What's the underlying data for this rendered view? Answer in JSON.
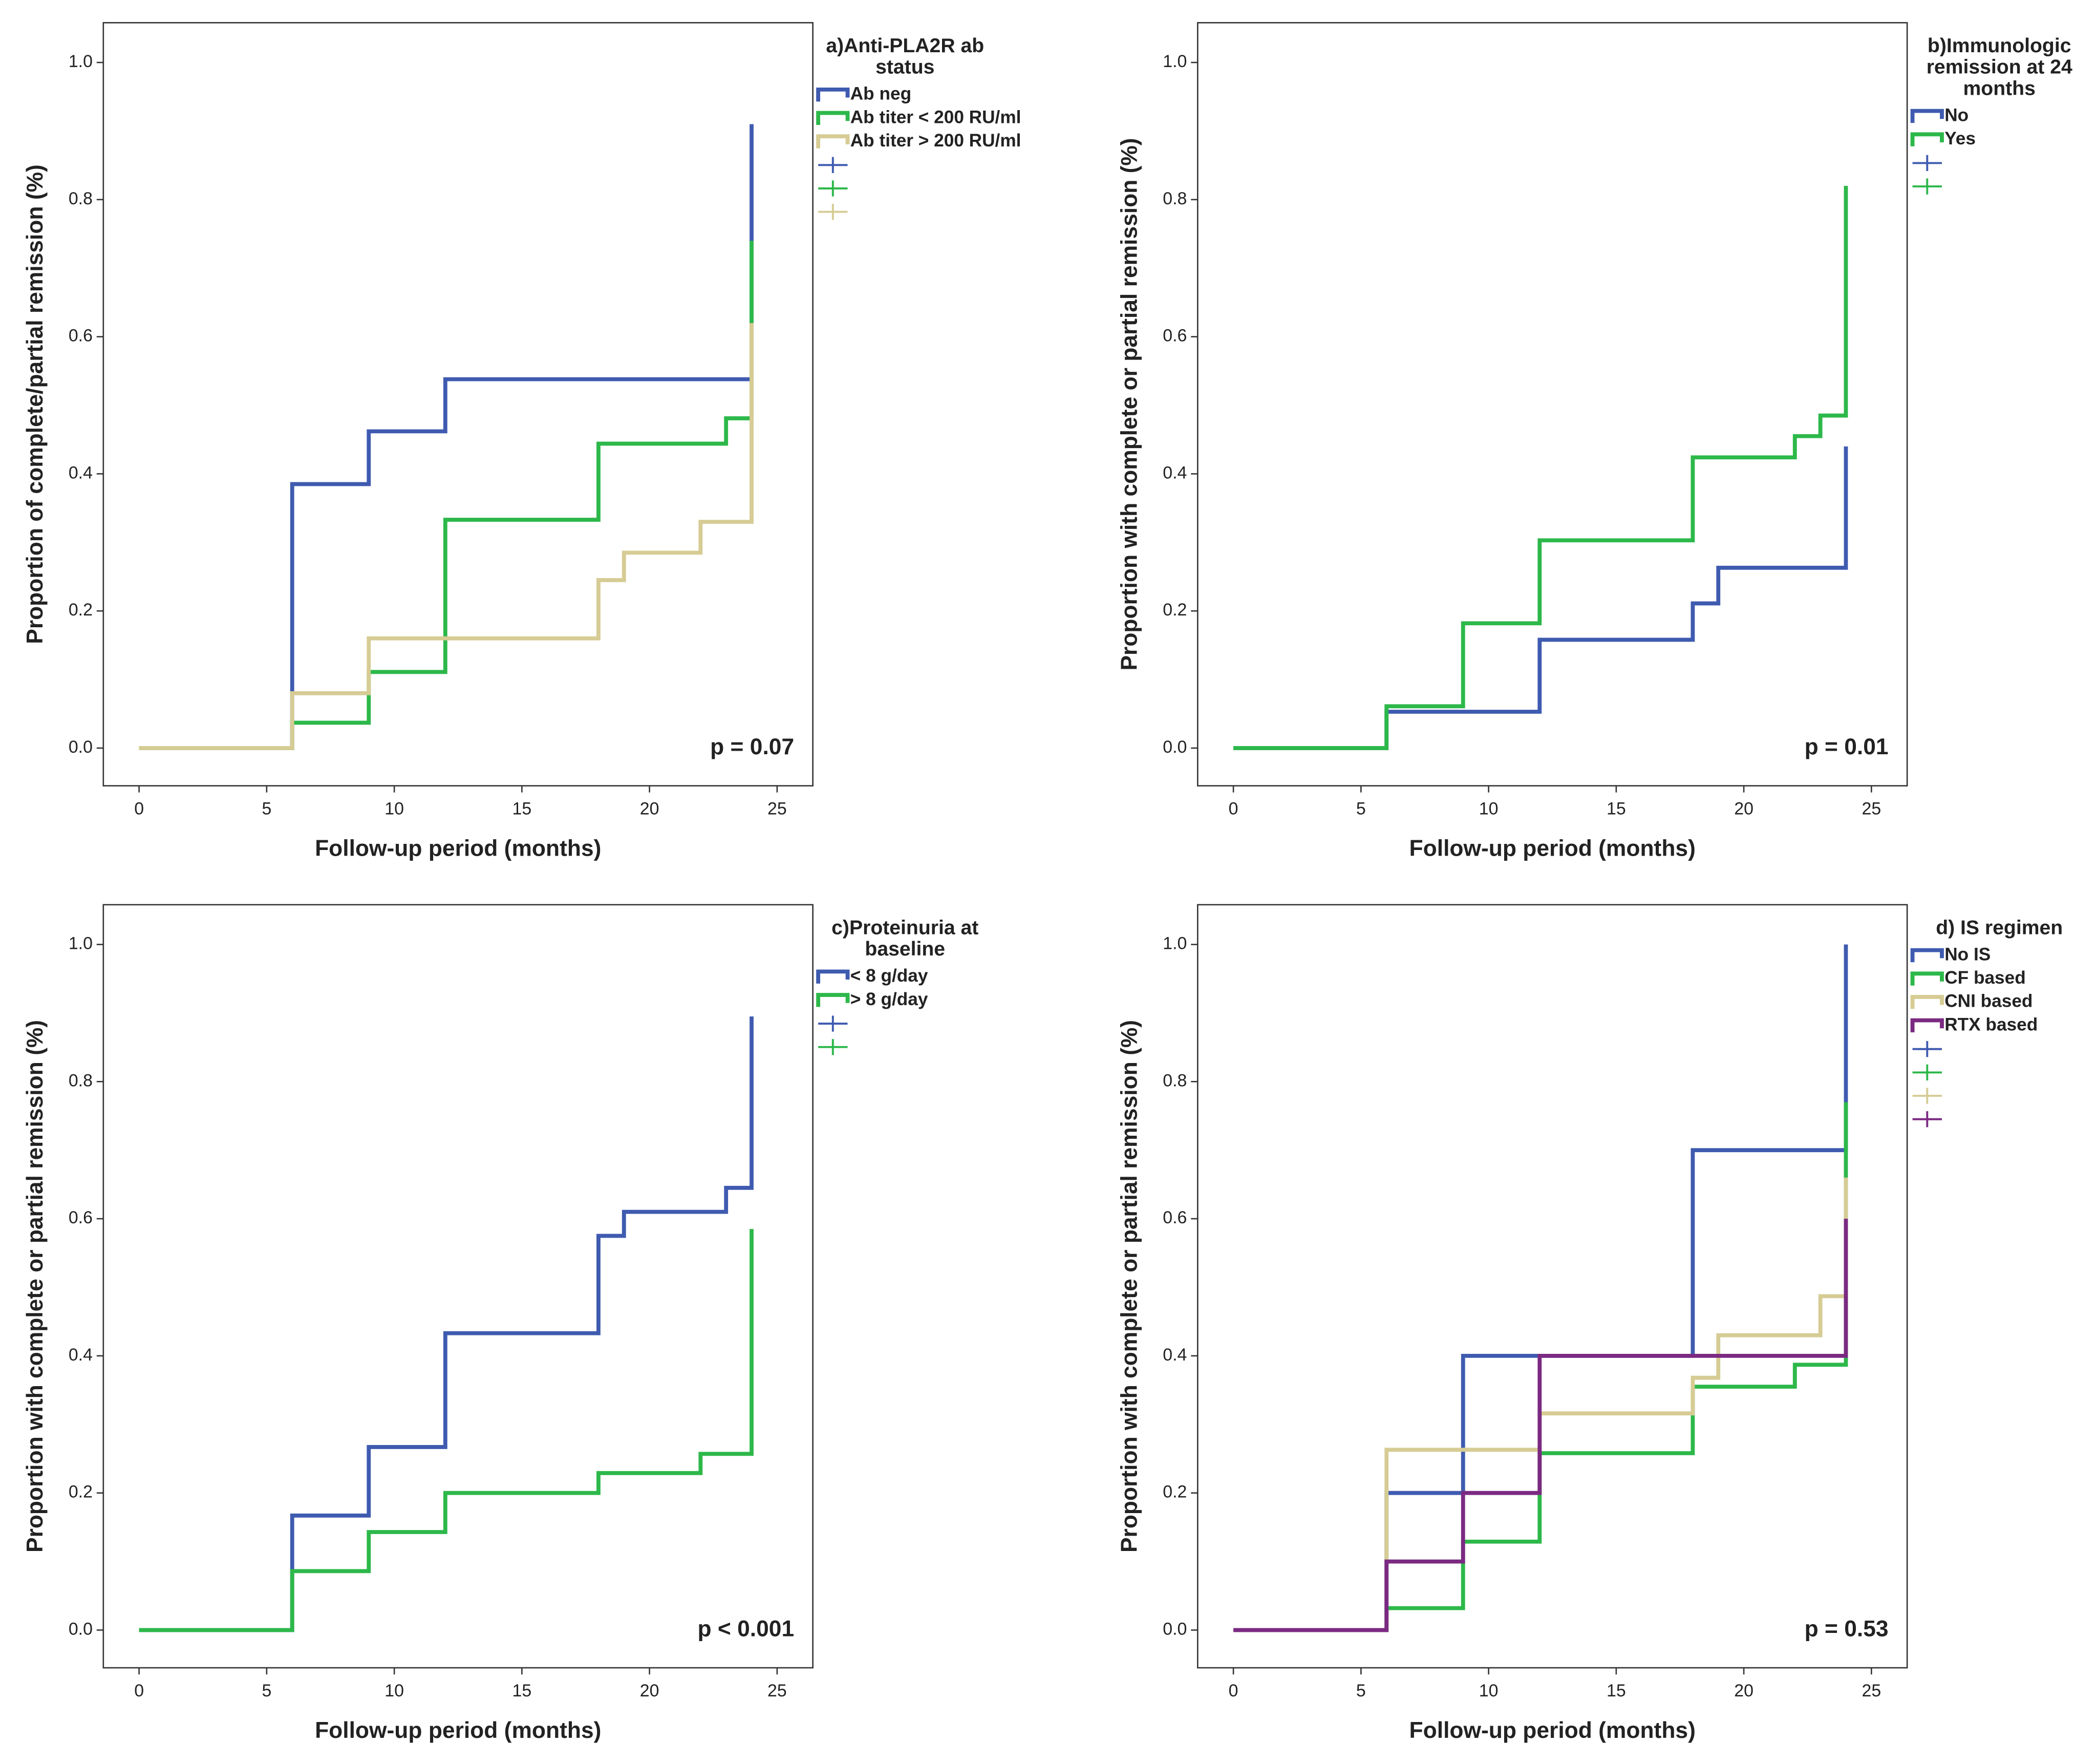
{
  "chart_data": [
    {
      "type": "step",
      "legend_title": "a)Anti-PLA2R ab status",
      "annotation": "p = 0.07",
      "xlabel": "Follow-up period (months)",
      "ylabel": "Proportion of complete/partial remission (%)",
      "x": [
        0,
        6,
        9,
        12,
        18,
        19,
        22,
        23,
        24
      ],
      "series": [
        {
          "name": "Ab neg",
          "color": "#3f5bb0",
          "values": [
            0,
            0.385,
            0.462,
            0.538,
            0.538,
            0.538,
            0.538,
            0.538,
            0.91
          ]
        },
        {
          "name": "Ab titer < 200 RU/ml",
          "color": "#2db84a",
          "values": [
            0,
            0.037,
            0.111,
            0.333,
            0.444,
            0.444,
            0.444,
            0.481,
            0.74
          ]
        },
        {
          "name": "Ab titer > 200 RU/ml",
          "color": "#d6cc94",
          "values": [
            0,
            0.08,
            0.16,
            0.16,
            0.245,
            0.285,
            0.33,
            0.33,
            0.62
          ]
        }
      ],
      "xlim": [
        -1.4,
        26.4
      ],
      "xticks": [
        0,
        5,
        10,
        15,
        20,
        25
      ],
      "ylim": [
        -0.055,
        1.058
      ],
      "yticks": [
        {
          "value": 0,
          "label": "0.0"
        },
        0.2,
        0.4,
        0.6,
        0.8,
        {
          "value": 1,
          "label": "1.0"
        }
      ]
    },
    {
      "type": "step",
      "legend_title": "b)Immunologic remission at 24 months",
      "annotation": "p = 0.01",
      "xlabel": "Follow-up period (months)",
      "ylabel": "Proportion with complete or partial remission (%)",
      "x": [
        0,
        6,
        9,
        12,
        18,
        19,
        22,
        23,
        24
      ],
      "series": [
        {
          "name": "No",
          "color": "#3f5bb0",
          "values": [
            0,
            0.053,
            0.053,
            0.158,
            0.211,
            0.263,
            0.263,
            0.263,
            0.44
          ]
        },
        {
          "name": "Yes",
          "color": "#2db84a",
          "values": [
            0,
            0.061,
            0.182,
            0.303,
            0.424,
            0.424,
            0.455,
            0.485,
            0.82
          ]
        }
      ],
      "xlim": [
        -1.4,
        26.4
      ],
      "xticks": [
        0,
        5,
        10,
        15,
        20,
        25
      ],
      "ylim": [
        -0.055,
        1.058
      ],
      "yticks": [
        {
          "value": 0,
          "label": "0.0"
        },
        0.2,
        0.4,
        0.6,
        0.8,
        {
          "value": 1,
          "label": "1.0"
        }
      ]
    },
    {
      "type": "step",
      "legend_title": "c)Proteinuria at baseline",
      "annotation": "p < 0.001",
      "xlabel": "Follow-up period (months)",
      "ylabel": "Proportion with complete or partial remission (%)",
      "x": [
        0,
        6,
        9,
        12,
        18,
        19,
        22,
        23,
        24
      ],
      "series": [
        {
          "name": "< 8 g/day",
          "color": "#3f5bb0",
          "values": [
            0,
            0.167,
            0.267,
            0.433,
            0.575,
            0.61,
            0.61,
            0.645,
            0.895
          ]
        },
        {
          "name": "> 8 g/day",
          "color": "#2db84a",
          "values": [
            0,
            0.086,
            0.143,
            0.2,
            0.229,
            0.229,
            0.257,
            0.257,
            0.585
          ]
        }
      ],
      "xlim": [
        -1.4,
        26.4
      ],
      "xticks": [
        0,
        5,
        10,
        15,
        20,
        25
      ],
      "ylim": [
        -0.055,
        1.058
      ],
      "yticks": [
        {
          "value": 0,
          "label": "0.0"
        },
        0.2,
        0.4,
        0.6,
        0.8,
        {
          "value": 1,
          "label": "1.0"
        }
      ]
    },
    {
      "type": "step",
      "legend_title": "d) IS regimen",
      "annotation": "p = 0.53",
      "xlabel": "Follow-up period (months)",
      "ylabel": "Proportion with complete or partial remission (%)",
      "x": [
        0,
        6,
        9,
        12,
        18,
        19,
        22,
        23,
        24
      ],
      "series": [
        {
          "name": "No IS",
          "color": "#3f5bb0",
          "values": [
            0,
            0.2,
            0.4,
            0.4,
            0.7,
            0.7,
            0.7,
            0.7,
            1.0
          ]
        },
        {
          "name": "CF based",
          "color": "#2db84a",
          "values": [
            0,
            0.032,
            0.129,
            0.258,
            0.355,
            0.355,
            0.387,
            0.387,
            0.77
          ]
        },
        {
          "name": "CNI based",
          "color": "#d6cc94",
          "values": [
            0,
            0.263,
            0.263,
            0.316,
            0.368,
            0.43,
            0.43,
            0.487,
            0.66
          ]
        },
        {
          "name": "RTX based",
          "color": "#7b2a82",
          "values": [
            0,
            0.1,
            0.2,
            0.4,
            0.4,
            0.4,
            0.4,
            0.4,
            0.6
          ]
        }
      ],
      "xlim": [
        -1.4,
        26.4
      ],
      "xticks": [
        0,
        5,
        10,
        15,
        20,
        25
      ],
      "ylim": [
        -0.055,
        1.058
      ],
      "yticks": [
        {
          "value": 0,
          "label": "0.0"
        },
        0.2,
        0.4,
        0.6,
        0.8,
        {
          "value": 1,
          "label": "1.0"
        }
      ]
    }
  ]
}
